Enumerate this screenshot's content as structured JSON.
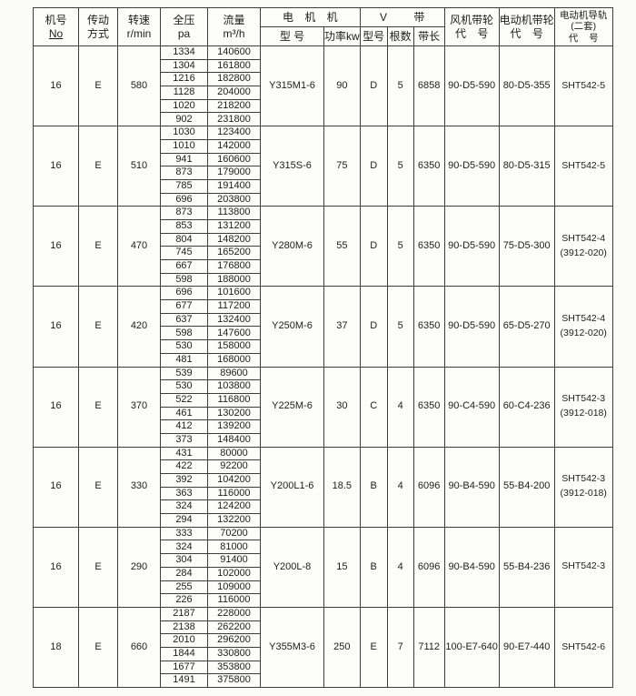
{
  "table": {
    "header": {
      "machine_no_l1": "机号",
      "machine_no_l2": "No",
      "drive_l1": "传动",
      "drive_l2": "方式",
      "speed_l1": "转速",
      "speed_l2": "r/min",
      "pressure_l1": "全压",
      "pressure_l2": "pa",
      "flow_l1": "流量",
      "flow_l2": "m³/h",
      "motor_group": "电 机 机",
      "motor_model_sub": "型 号",
      "motor_power_sub": "功率kw",
      "vbelt_group": "V 带",
      "belt_model_sub": "型号",
      "belt_count_sub": "根数",
      "belt_length_sub": "带长",
      "fan_pulley_l1": "风机带轮",
      "fan_pulley_l2": "代 号",
      "motor_pulley_l1": "电动机带轮",
      "motor_pulley_l2": "代 号",
      "rail_l1": "电动机导轨",
      "rail_l2": "(二套)",
      "rail_l3": "代 号"
    },
    "blocks": [
      {
        "machine_no": "16",
        "drive_type": "E",
        "speed": "580",
        "rows": [
          [
            "1334",
            "140600"
          ],
          [
            "1304",
            "161800"
          ],
          [
            "1216",
            "182800"
          ],
          [
            "1128",
            "204000"
          ],
          [
            "1020",
            "218200"
          ],
          [
            "902",
            "231800"
          ]
        ],
        "motor_model": "Y315M1-6",
        "power_kw": "90",
        "belt_type": "D",
        "belt_count": "5",
        "belt_length": "6858",
        "fan_pulley_code": "90-D5-590",
        "motor_pulley_code": "80-D5-355",
        "rail_code": [
          "SHT542-5"
        ]
      },
      {
        "machine_no": "16",
        "drive_type": "E",
        "speed": "510",
        "rows": [
          [
            "1030",
            "123400"
          ],
          [
            "1010",
            "142000"
          ],
          [
            "941",
            "160600"
          ],
          [
            "873",
            "179000"
          ],
          [
            "785",
            "191400"
          ],
          [
            "696",
            "203800"
          ]
        ],
        "motor_model": "Y315S-6",
        "power_kw": "75",
        "belt_type": "D",
        "belt_count": "5",
        "belt_length": "6350",
        "fan_pulley_code": "90-D5-590",
        "motor_pulley_code": "80-D5-315",
        "rail_code": [
          "SHT542-5"
        ]
      },
      {
        "machine_no": "16",
        "drive_type": "E",
        "speed": "470",
        "rows": [
          [
            "873",
            "113800"
          ],
          [
            "853",
            "131200"
          ],
          [
            "804",
            "148200"
          ],
          [
            "745",
            "165200"
          ],
          [
            "667",
            "176800"
          ],
          [
            "598",
            "188000"
          ]
        ],
        "motor_model": "Y280M-6",
        "power_kw": "55",
        "belt_type": "D",
        "belt_count": "5",
        "belt_length": "6350",
        "fan_pulley_code": "90-D5-590",
        "motor_pulley_code": "75-D5-300",
        "rail_code": [
          "SHT542-4",
          "(3912-020)"
        ]
      },
      {
        "machine_no": "16",
        "drive_type": "E",
        "speed": "420",
        "rows": [
          [
            "696",
            "101600"
          ],
          [
            "677",
            "117200"
          ],
          [
            "637",
            "132400"
          ],
          [
            "598",
            "147600"
          ],
          [
            "530",
            "158000"
          ],
          [
            "481",
            "168000"
          ]
        ],
        "motor_model": "Y250M-6",
        "power_kw": "37",
        "belt_type": "D",
        "belt_count": "5",
        "belt_length": "6350",
        "fan_pulley_code": "90-D5-590",
        "motor_pulley_code": "65-D5-270",
        "rail_code": [
          "SHT542-4",
          "(3912-020)"
        ]
      },
      {
        "machine_no": "16",
        "drive_type": "E",
        "speed": "370",
        "rows": [
          [
            "539",
            "89600"
          ],
          [
            "530",
            "103800"
          ],
          [
            "522",
            "116800"
          ],
          [
            "461",
            "130200"
          ],
          [
            "412",
            "139200"
          ],
          [
            "373",
            "148400"
          ]
        ],
        "motor_model": "Y225M-6",
        "power_kw": "30",
        "belt_type": "C",
        "belt_count": "4",
        "belt_length": "6350",
        "fan_pulley_code": "90-C4-590",
        "motor_pulley_code": "60-C4-236",
        "rail_code": [
          "SHT542-3",
          "(3912-018)"
        ]
      },
      {
        "machine_no": "16",
        "drive_type": "E",
        "speed": "330",
        "rows": [
          [
            "431",
            "80000"
          ],
          [
            "422",
            "92200"
          ],
          [
            "392",
            "104200"
          ],
          [
            "363",
            "116000"
          ],
          [
            "324",
            "124200"
          ],
          [
            "294",
            "132200"
          ]
        ],
        "motor_model": "Y200L1-6",
        "power_kw": "18.5",
        "belt_type": "B",
        "belt_count": "4",
        "belt_length": "6096",
        "fan_pulley_code": "90-B4-590",
        "motor_pulley_code": "55-B4-200",
        "rail_code": [
          "SHT542-3",
          "(3912-018)"
        ]
      },
      {
        "machine_no": "16",
        "drive_type": "E",
        "speed": "290",
        "rows": [
          [
            "333",
            "70200"
          ],
          [
            "324",
            "81000"
          ],
          [
            "304",
            "91400"
          ],
          [
            "284",
            "102000"
          ],
          [
            "255",
            "109000"
          ],
          [
            "226",
            "116000"
          ]
        ],
        "motor_model": "Y200L-8",
        "power_kw": "15",
        "belt_type": "B",
        "belt_count": "4",
        "belt_length": "6096",
        "fan_pulley_code": "90-B4-590",
        "motor_pulley_code": "55-B4-236",
        "rail_code": [
          "SHT542-3"
        ]
      },
      {
        "machine_no": "18",
        "drive_type": "E",
        "speed": "660",
        "rows": [
          [
            "2187",
            "228000"
          ],
          [
            "2138",
            "262200"
          ],
          [
            "2010",
            "296200"
          ],
          [
            "1844",
            "330800"
          ],
          [
            "1677",
            "353800"
          ],
          [
            "1491",
            "375800"
          ]
        ],
        "motor_model": "Y355M3-6",
        "power_kw": "250",
        "belt_type": "E",
        "belt_count": "7",
        "belt_length": "7112",
        "fan_pulley_code": "100-E7-640",
        "motor_pulley_code": "90-E7-440",
        "rail_code": [
          "SHT542-6"
        ]
      }
    ]
  }
}
